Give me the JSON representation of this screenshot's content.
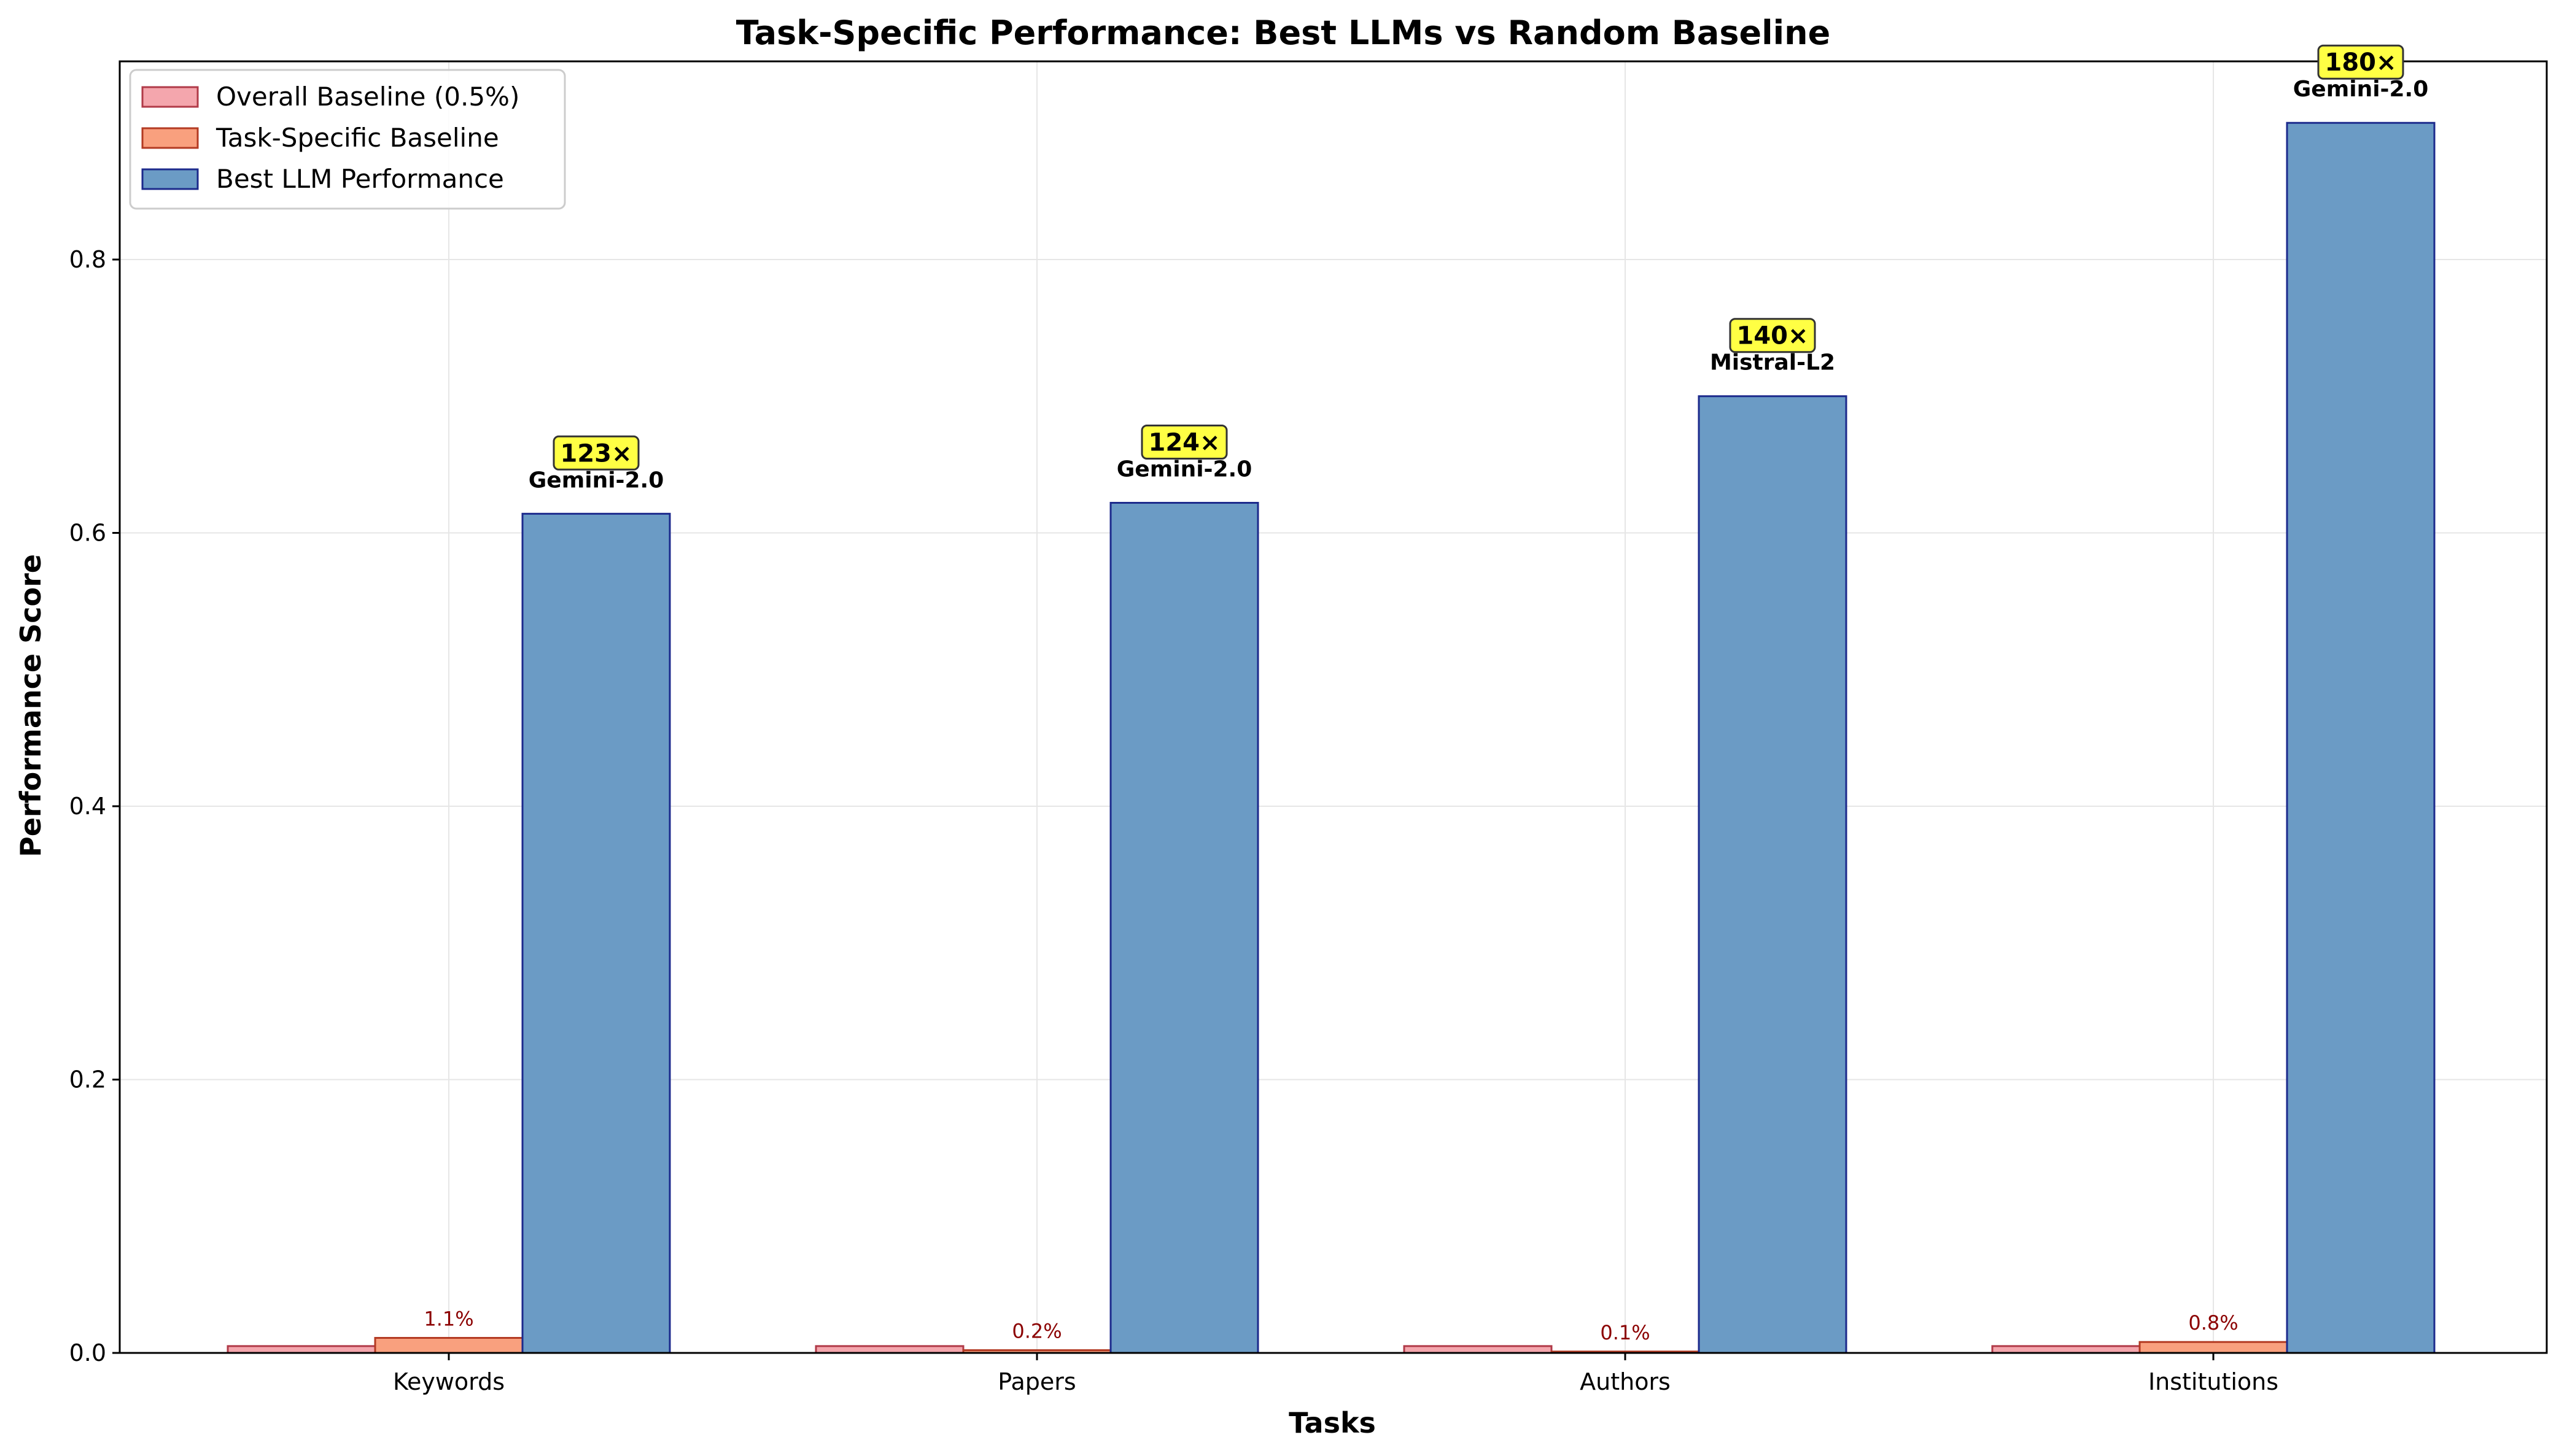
{
  "chart_data": {
    "type": "bar",
    "title": "Task-Specific Performance: Best LLMs vs Random Baseline",
    "xlabel": "Tasks",
    "ylabel": "Performance Score",
    "ylim": [
      0,
      0.945
    ],
    "yticks": [
      0.0,
      0.2,
      0.4,
      0.6,
      0.8
    ],
    "ytick_labels": [
      "0.0",
      "0.2",
      "0.4",
      "0.6",
      "0.8"
    ],
    "grid": true,
    "legend_position": "top-left",
    "categories": [
      "Keywords",
      "Papers",
      "Authors",
      "Institutions"
    ],
    "series": [
      {
        "name": "Overall Baseline (0.5%)",
        "values": [
          0.005,
          0.005,
          0.005,
          0.005
        ],
        "fill": "#f4a6ad",
        "stroke": "#b03a48"
      },
      {
        "name": "Task-Specific Baseline",
        "values": [
          0.011,
          0.002,
          0.001,
          0.008
        ],
        "value_labels": [
          "1.1%",
          "0.2%",
          "0.1%",
          "0.8%"
        ],
        "fill": "#f9a07e",
        "stroke": "#b33a22"
      },
      {
        "name": "Best LLM Performance",
        "values": [
          0.614,
          0.622,
          0.7,
          0.9
        ],
        "model_labels": [
          "Gemini-2.0",
          "Gemini-2.0",
          "Mistral-L2",
          "Gemini-2.0"
        ],
        "multiplier_labels": [
          "123×",
          "124×",
          "140×",
          "180×"
        ],
        "fill": "#6b9bc5",
        "stroke": "#1c2a8c"
      }
    ],
    "colors": {
      "grid": "#e6e6e6",
      "axis": "#000000",
      "pct_label": "#8b0000",
      "badge_fill": "#ffff44",
      "badge_stroke": "#333333"
    }
  }
}
